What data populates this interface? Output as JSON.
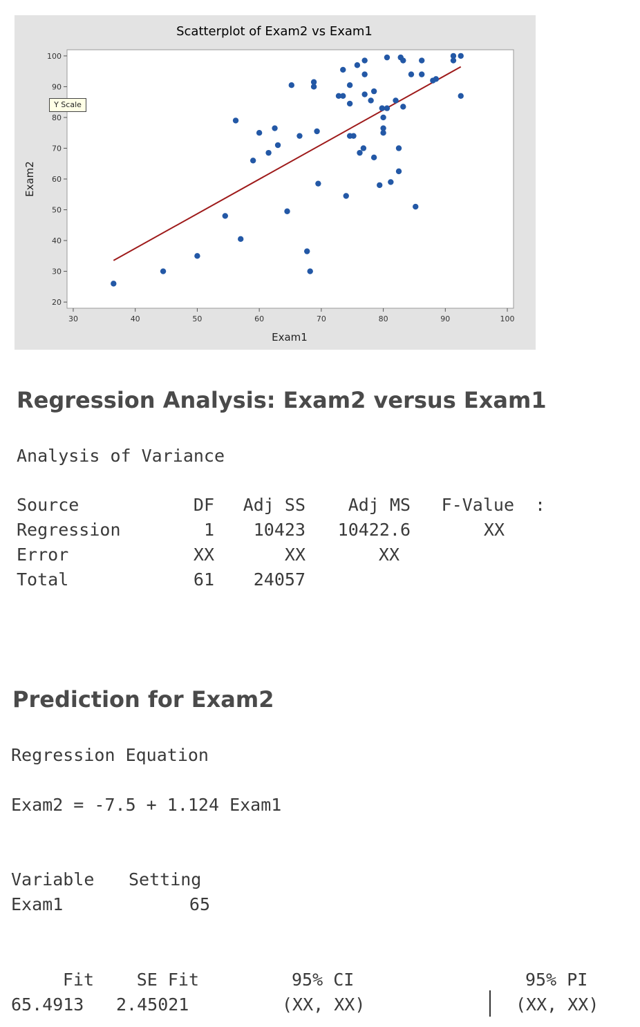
{
  "chart_data": {
    "type": "scatter",
    "title": "Scatterplot of Exam2 vs Exam1",
    "xlabel": "Exam1",
    "ylabel": "Exam2",
    "xlim": [
      29,
      101
    ],
    "ylim": [
      18,
      102
    ],
    "xticks": [
      30,
      40,
      50,
      60,
      70,
      80,
      90,
      100
    ],
    "yticks": [
      20,
      30,
      40,
      50,
      60,
      70,
      80,
      90,
      100
    ],
    "tooltip": "Y Scale",
    "points": [
      [
        36.5,
        26
      ],
      [
        44.5,
        30
      ],
      [
        50,
        35
      ],
      [
        54.5,
        48
      ],
      [
        57,
        40.5
      ],
      [
        56.2,
        79
      ],
      [
        59,
        66
      ],
      [
        60,
        75
      ],
      [
        61.5,
        68.5
      ],
      [
        62.5,
        76.5
      ],
      [
        63,
        71
      ],
      [
        64.5,
        49.5
      ],
      [
        65.2,
        90.5
      ],
      [
        66.5,
        74
      ],
      [
        67.7,
        36.5
      ],
      [
        68.2,
        30
      ],
      [
        68.8,
        91.5
      ],
      [
        68.8,
        90
      ],
      [
        69.3,
        75.5
      ],
      [
        69.5,
        58.5
      ],
      [
        72.8,
        87
      ],
      [
        73.5,
        87
      ],
      [
        73.5,
        95.5
      ],
      [
        74,
        54.5
      ],
      [
        74.6,
        90.5
      ],
      [
        74.6,
        74
      ],
      [
        74.6,
        84.5
      ],
      [
        75.2,
        74
      ],
      [
        75.8,
        97
      ],
      [
        76.2,
        68.5
      ],
      [
        76.8,
        70
      ],
      [
        77,
        98.5
      ],
      [
        77,
        94
      ],
      [
        77,
        87.5
      ],
      [
        78,
        85.5
      ],
      [
        78.5,
        67
      ],
      [
        78.5,
        88.5
      ],
      [
        79.4,
        58
      ],
      [
        79.8,
        83
      ],
      [
        80,
        80
      ],
      [
        80,
        76.5
      ],
      [
        80,
        75
      ],
      [
        80.6,
        83
      ],
      [
        80.6,
        99.5
      ],
      [
        81.2,
        59
      ],
      [
        82,
        85.5
      ],
      [
        82.5,
        62.5
      ],
      [
        82.5,
        70
      ],
      [
        82.8,
        99.5
      ],
      [
        83.2,
        98.5
      ],
      [
        83.2,
        83.5
      ],
      [
        84.5,
        94
      ],
      [
        85.2,
        51
      ],
      [
        86.2,
        98.5
      ],
      [
        86.2,
        94
      ],
      [
        88,
        92
      ],
      [
        88.5,
        92.5
      ],
      [
        91.3,
        100
      ],
      [
        91.3,
        98.5
      ],
      [
        92.5,
        100
      ],
      [
        92.5,
        87
      ]
    ],
    "fit_line": {
      "intercept": -7.5,
      "slope": 1.124,
      "x_from": 36.5,
      "x_to": 92.5
    },
    "marker_color": "#2358a6",
    "line_color": "#9e1a1a",
    "panel_color": "#e3e3e3",
    "grid": false
  },
  "regression": {
    "title": "Regression Analysis: Exam2 versus Exam1",
    "anova_title": "Analysis of Variance",
    "headers": {
      "source": "Source",
      "df": "DF",
      "adj_ss": "Adj SS",
      "adj_ms": "Adj MS",
      "f_value": "F-Value",
      "cut": ":"
    },
    "rows": [
      {
        "source": "Regression",
        "df": "1",
        "adj_ss": "10423",
        "adj_ms": "10422.6",
        "f_value": "XX"
      },
      {
        "source": "Error",
        "df": "XX",
        "adj_ss": "XX",
        "adj_ms": "XX",
        "f_value": ""
      },
      {
        "source": "Total",
        "df": "61",
        "adj_ss": "24057",
        "adj_ms": "",
        "f_value": ""
      }
    ]
  },
  "prediction": {
    "title": "Prediction for Exam2",
    "equation_title": "Regression Equation",
    "equation": "Exam2 = -7.5 + 1.124 Exam1",
    "variable_header": "Variable",
    "setting_header": "Setting",
    "variable": "Exam1",
    "setting": "65",
    "fit_header": "Fit",
    "se_fit_header": "SE Fit",
    "ci_header": "95% CI",
    "pi_header": "95% PI",
    "fit": "65.4913",
    "se_fit": "2.45021",
    "ci": "(XX, XX)",
    "pi": "(XX, XX)"
  }
}
